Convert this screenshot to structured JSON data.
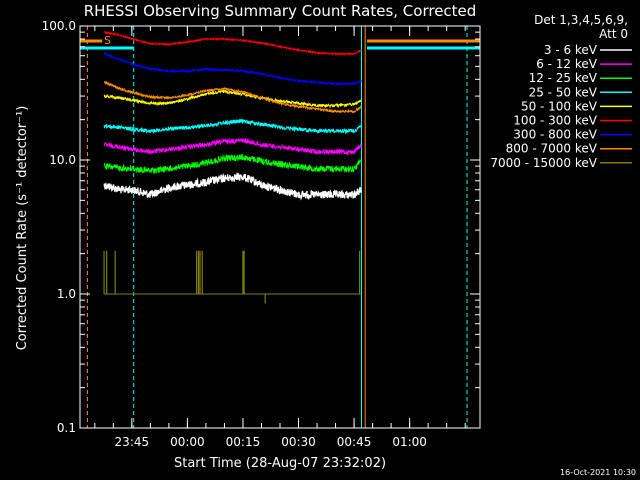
{
  "chart_data": {
    "type": "line",
    "title": "RHESSI Observing Summary Count Rates, Corrected",
    "xlabel": "Start Time (28-Aug-07 23:32:02)",
    "ylabel": "Corrected Count Rate (s⁻¹ detector⁻¹)",
    "y_scale": "log",
    "ylim": [
      0.1,
      100
    ],
    "y_ticks": [
      "0.1",
      "1.0",
      "10.0",
      "100.0"
    ],
    "xlim_minutes": [
      -14,
      94
    ],
    "x_ticks": [
      {
        "label": "23:45",
        "m": 0
      },
      {
        "label": "00:00",
        "m": 15
      },
      {
        "label": "00:15",
        "m": 30
      },
      {
        "label": "00:30",
        "m": 45
      },
      {
        "label": "00:45",
        "m": 60
      },
      {
        "label": "01:00",
        "m": 75
      }
    ],
    "legend_header": [
      "Det 1,3,4,5,6,9,",
      "Att 0"
    ],
    "legend_position": "right",
    "date_stamp": "16-Oct-2021 10:30",
    "s_marker": "S",
    "grid": false,
    "series": [
      {
        "name": "3 - 6 keV",
        "color": "#ffffff",
        "data": [
          [
            -7.5,
            6.5
          ],
          [
            -3,
            6
          ],
          [
            0,
            6
          ],
          [
            5,
            5.5
          ],
          [
            10,
            6.2
          ],
          [
            15,
            6.5
          ],
          [
            20,
            6.8
          ],
          [
            25,
            7.3
          ],
          [
            30,
            7.5
          ],
          [
            35,
            6.5
          ],
          [
            40,
            6
          ],
          [
            45,
            5.5
          ],
          [
            50,
            5.5
          ],
          [
            55,
            5.5
          ],
          [
            60,
            5.5
          ],
          [
            62,
            6
          ]
        ]
      },
      {
        "name": "6 - 12 keV",
        "color": "#ff00ff",
        "data": [
          [
            -7.5,
            13
          ],
          [
            -3,
            12.5
          ],
          [
            0,
            12
          ],
          [
            5,
            11.5
          ],
          [
            10,
            12
          ],
          [
            15,
            12.5
          ],
          [
            20,
            13
          ],
          [
            25,
            13.8
          ],
          [
            30,
            14
          ],
          [
            35,
            13
          ],
          [
            40,
            12.5
          ],
          [
            45,
            12
          ],
          [
            50,
            11.5
          ],
          [
            55,
            11.5
          ],
          [
            60,
            11.5
          ],
          [
            62,
            13
          ]
        ]
      },
      {
        "name": "12 - 25 keV",
        "color": "#00ff00",
        "data": [
          [
            -7.5,
            9
          ],
          [
            -3,
            8.7
          ],
          [
            0,
            8.6
          ],
          [
            5,
            8.3
          ],
          [
            10,
            8.6
          ],
          [
            15,
            9
          ],
          [
            20,
            9.5
          ],
          [
            25,
            10.3
          ],
          [
            30,
            10.5
          ],
          [
            35,
            9.8
          ],
          [
            40,
            9.3
          ],
          [
            45,
            9
          ],
          [
            50,
            8.6
          ],
          [
            55,
            8.6
          ],
          [
            60,
            8.6
          ],
          [
            62,
            10
          ]
        ]
      },
      {
        "name": "25 - 50 keV",
        "color": "#00ffff",
        "data": [
          [
            -7.5,
            18
          ],
          [
            -3,
            17.5
          ],
          [
            0,
            17
          ],
          [
            5,
            16.5
          ],
          [
            10,
            17
          ],
          [
            15,
            17.5
          ],
          [
            20,
            18
          ],
          [
            25,
            19
          ],
          [
            30,
            19.5
          ],
          [
            35,
            18.5
          ],
          [
            40,
            17.5
          ],
          [
            45,
            17
          ],
          [
            50,
            16.5
          ],
          [
            55,
            16.5
          ],
          [
            60,
            16.5
          ],
          [
            62,
            18
          ]
        ]
      },
      {
        "name": "50 - 100 keV",
        "color": "#ffff00",
        "data": [
          [
            -7.5,
            30
          ],
          [
            -3,
            29
          ],
          [
            0,
            28
          ],
          [
            5,
            26.5
          ],
          [
            10,
            26.5
          ],
          [
            15,
            28.5
          ],
          [
            20,
            31
          ],
          [
            25,
            32.5
          ],
          [
            30,
            31
          ],
          [
            35,
            29
          ],
          [
            40,
            27.5
          ],
          [
            45,
            26.5
          ],
          [
            50,
            25.5
          ],
          [
            55,
            25.5
          ],
          [
            60,
            26
          ],
          [
            62,
            28
          ]
        ]
      },
      {
        "name": "100 - 300 keV",
        "color": "#ff0000",
        "data": [
          [
            -7.5,
            90
          ],
          [
            -3,
            85
          ],
          [
            0,
            80
          ],
          [
            5,
            74
          ],
          [
            10,
            73
          ],
          [
            15,
            76
          ],
          [
            20,
            80
          ],
          [
            25,
            80
          ],
          [
            30,
            78
          ],
          [
            35,
            75
          ],
          [
            40,
            70
          ],
          [
            45,
            66
          ],
          [
            50,
            63
          ],
          [
            55,
            62
          ],
          [
            60,
            62
          ],
          [
            62,
            66
          ]
        ]
      },
      {
        "name": "300 - 800 keV",
        "color": "#0000ff",
        "data": [
          [
            -7.5,
            62
          ],
          [
            -3,
            56
          ],
          [
            0,
            52
          ],
          [
            5,
            48
          ],
          [
            10,
            46
          ],
          [
            15,
            46
          ],
          [
            20,
            47.5
          ],
          [
            25,
            47
          ],
          [
            30,
            46
          ],
          [
            35,
            44
          ],
          [
            40,
            41
          ],
          [
            45,
            39
          ],
          [
            50,
            38
          ],
          [
            55,
            37
          ],
          [
            60,
            37
          ],
          [
            62,
            39
          ]
        ]
      },
      {
        "name": "800 - 7000 keV",
        "color": "#ff8c00",
        "data": [
          [
            -7.5,
            38
          ],
          [
            -3,
            34
          ],
          [
            0,
            32
          ],
          [
            5,
            29.5
          ],
          [
            10,
            29
          ],
          [
            15,
            30.5
          ],
          [
            20,
            33
          ],
          [
            25,
            34
          ],
          [
            30,
            32
          ],
          [
            35,
            29
          ],
          [
            40,
            26.5
          ],
          [
            45,
            25
          ],
          [
            50,
            24
          ],
          [
            55,
            23
          ],
          [
            60,
            23
          ],
          [
            62,
            25
          ]
        ]
      },
      {
        "name": "7000 - 15000 keV",
        "color": "#808000",
        "data": [
          [
            -7.5,
            1
          ],
          [
            -3,
            1
          ],
          [
            0,
            1
          ],
          [
            10,
            1
          ],
          [
            20,
            1
          ],
          [
            30,
            1
          ],
          [
            40,
            1
          ],
          [
            50,
            1
          ],
          [
            60,
            1
          ],
          [
            62,
            1
          ]
        ]
      }
    ],
    "vertical_markers": [
      {
        "m": -12,
        "color": "#ff8c00",
        "style": "dashed"
      },
      {
        "m": 0.5,
        "color": "#00ffff",
        "style": "dashed"
      },
      {
        "m": 62,
        "color": "#00ffff",
        "style": "solid"
      },
      {
        "m": 63,
        "color": "#ff8c00",
        "style": "solid"
      },
      {
        "m": 90.5,
        "color": "#00ffff",
        "style": "dashed"
      }
    ]
  }
}
